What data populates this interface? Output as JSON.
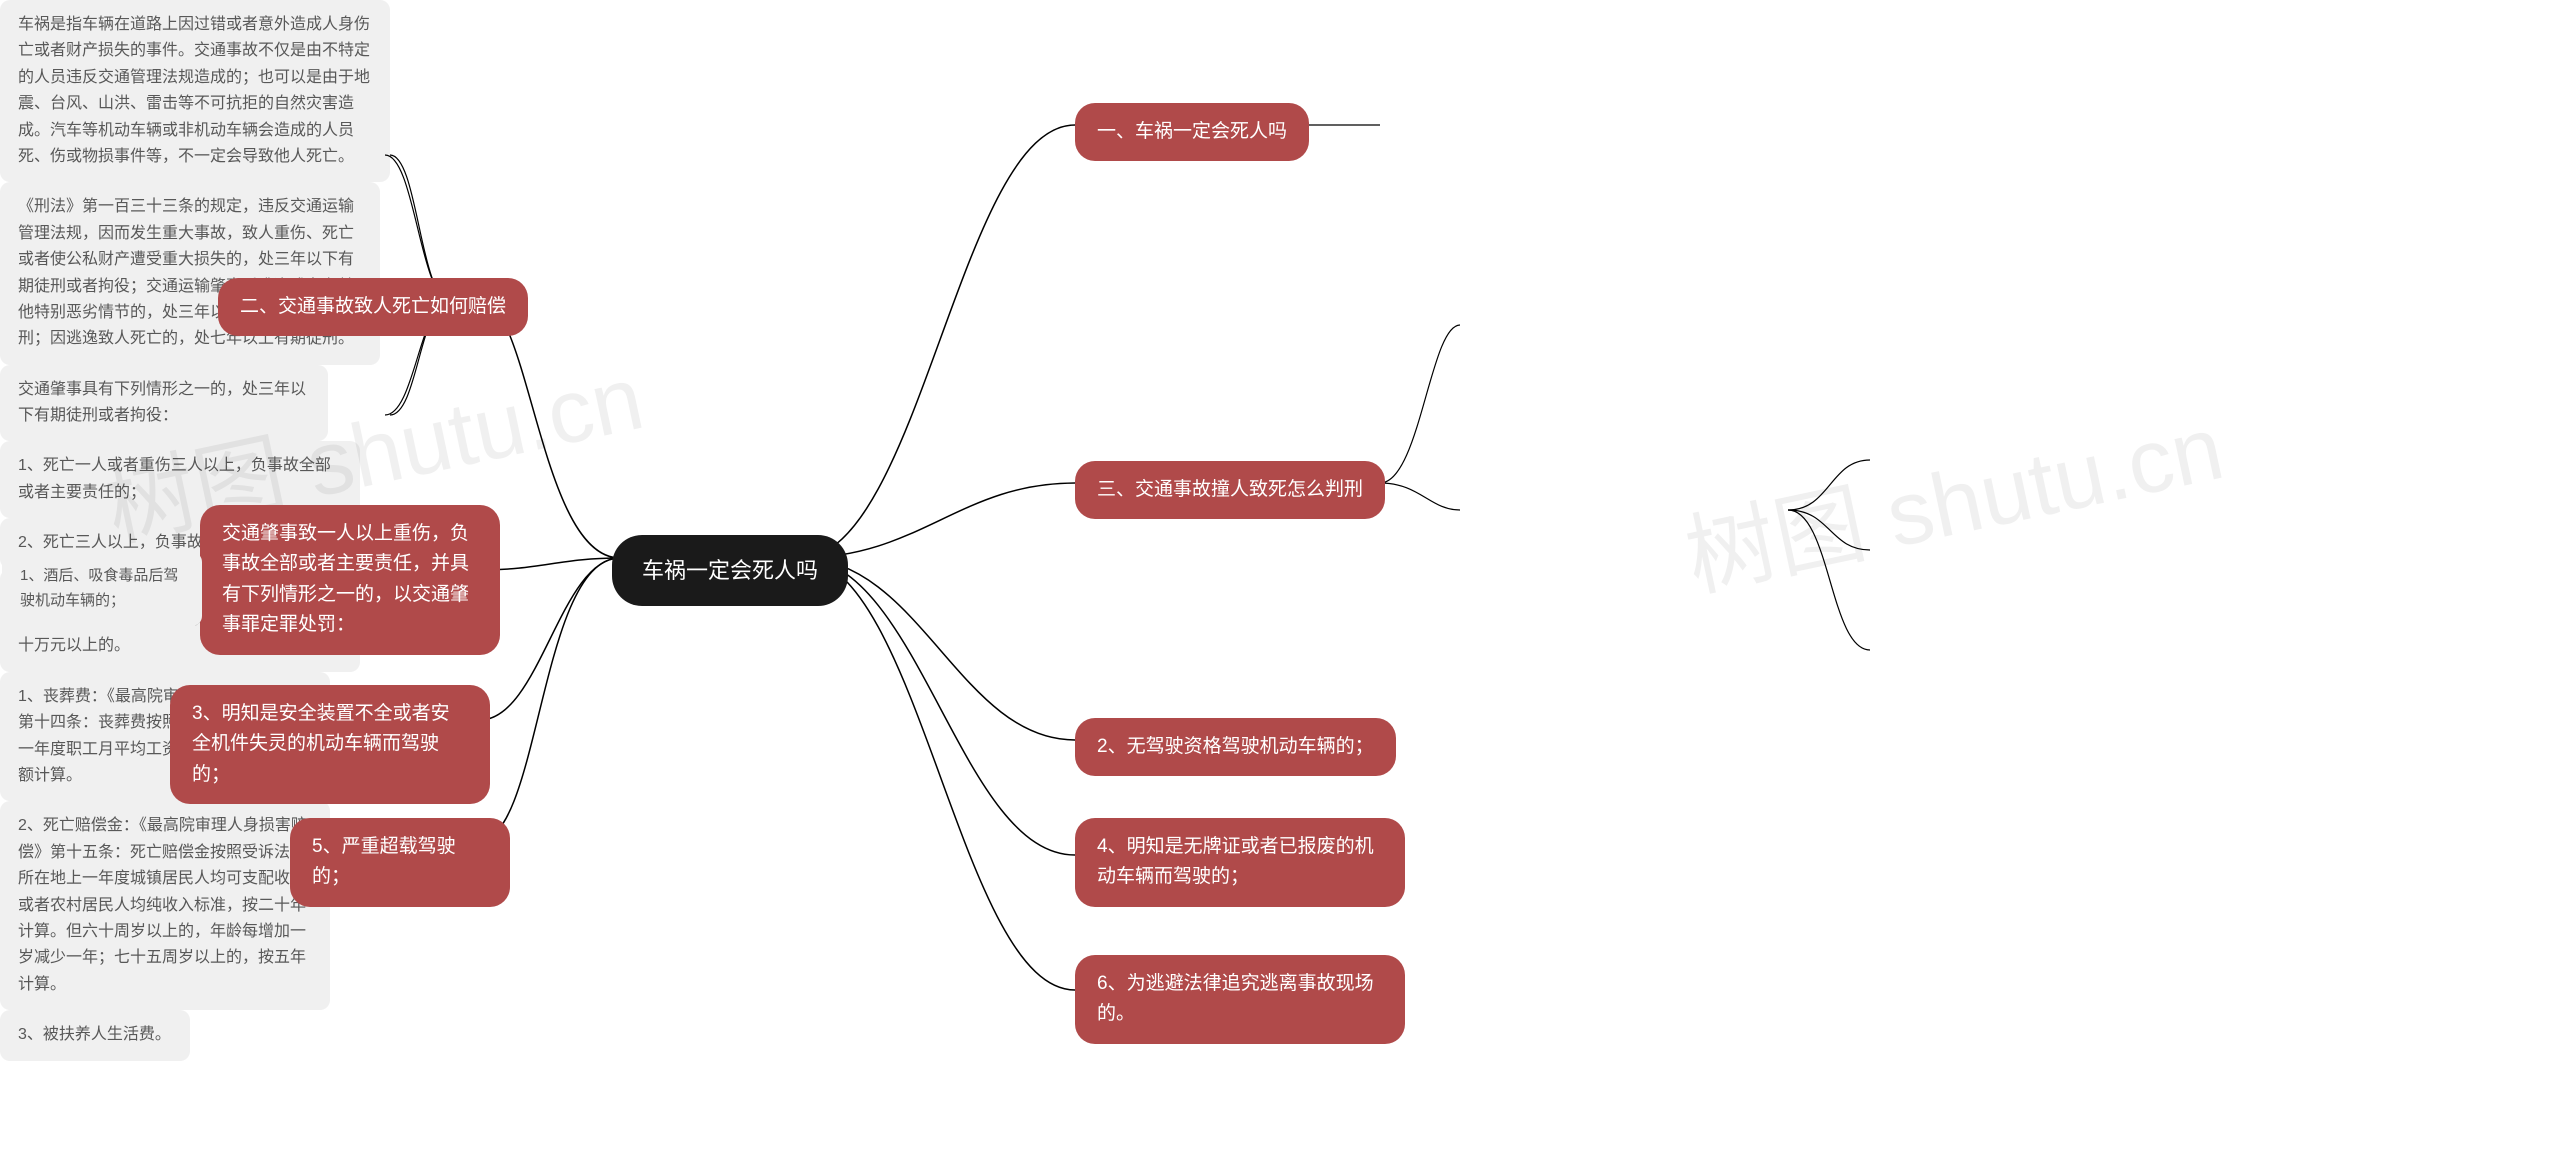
{
  "center": {
    "label": "车祸一定会死人吗"
  },
  "watermarks": [
    "树图 shutu.cn",
    "树图 shutu.cn"
  ],
  "right": {
    "section1": {
      "title": "一、车祸一定会死人吗",
      "text": "车祸是指车辆在道路上因过错或者意外造成人身伤亡或者财产损失的事件。交通事故不仅是由不特定的人员违反交通管理法规造成的；也可以是由于地震、台风、山洪、雷击等不可抗拒的自然灾害造成。汽车等机动车辆或非机动车辆会造成的人员死、伤或物损事件等，不一定会导致他人死亡。"
    },
    "section3": {
      "title": "三、交通事故撞人致死怎么判刑",
      "leaf1": "《刑法》第一百三十三条的规定，违反交通运输管理法规，因而发生重大事故，致人重伤、死亡或者使公私财产遭受重大损失的，处三年以下有期徒刑或者拘役；交通运输肇事后逃逸或者有其他特别恶劣情节的，处三年以上七年以下有期徒刑；因逃逸致人死亡的，处七年以上有期徒刑。",
      "leaf2": {
        "intro": "交通肇事具有下列情形之一的，处三年以下有期徒刑或者拘役：",
        "items": [
          "1、死亡一人或者重伤三人以上，负事故全部或者主要责任的；",
          "2、死亡三人以上，负事故同等责任的；",
          "3、造成公共财产或者他人财产直接损失，负事故全部或者主要责任，无能力赔偿数额在三十万元以上的。"
        ]
      }
    },
    "free_mains": [
      "2、无驾驶资格驾驶机动车辆的；",
      "4、明知是无牌证或者已报废的机动车辆而驾驶的；",
      "6、为逃避法律追究逃离事故现场的。"
    ]
  },
  "left": {
    "section2": {
      "title": "二、交通事故致人死亡如何赔偿",
      "leaves": [
        "1、丧葬费：《最高院审理人身损害赔偿》第十四条：丧葬费按照受诉法院所在地上一年度职工月平均工资标准，以六个月总额计算。",
        "2、死亡赔偿金：《最高院审理人身损害赔偿》第十五条：死亡赔偿金按照受诉法院所在地上一年度城镇居民人均可支配收入或者农村居民人均纯收入标准，按二十年计算。但六十周岁以上的，年龄每增加一岁减少一年；七十五周岁以上的，按五年计算。",
        "3、被扶养人生活费。"
      ]
    },
    "cluster": {
      "main": "交通肇事致一人以上重伤，负事故全部或者主要责任，并具有下列情形之一的，以交通肇事罪定罪处罚：",
      "leaf": "1、酒后、吸食毒品后驾驶机动车辆的；",
      "free_mains": [
        "3、明知是安全装置不全或者安全机件失灵的机动车辆而驾驶的；",
        "5、严重超载驾驶的；"
      ]
    }
  },
  "colors": {
    "center_bg": "#1a1a1a",
    "main_bg": "#b04a4a",
    "leaf_bg": "#f0f0f0",
    "leaf_text": "#585858",
    "connector": "#000000"
  }
}
